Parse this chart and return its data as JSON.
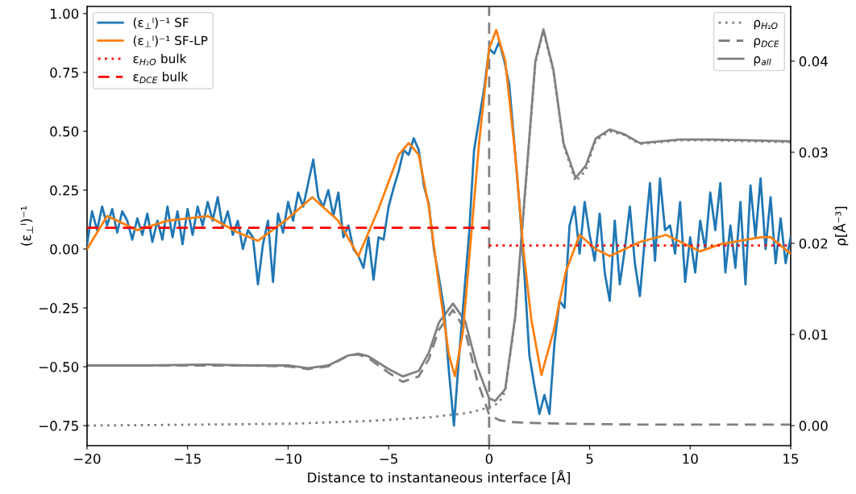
{
  "chart_data": {
    "type": "line",
    "xlabel": "Distance to instantaneous interface [Å]",
    "ylabel": "(ε$_{⊥}$ˡ)⁻¹",
    "y2label": "ρ[Å⁻³]",
    "xlim": [
      -20,
      15
    ],
    "xticks": [
      {
        "value": -20,
        "label": "−20"
      },
      {
        "value": -15,
        "label": "−15"
      },
      {
        "value": -10,
        "label": "−10"
      },
      {
        "value": -5,
        "label": "−5"
      },
      0,
      5,
      10,
      15
    ],
    "ylim": [
      -0.835,
      1.03
    ],
    "yticks": [
      {
        "value": -0.75,
        "label": "−0.75"
      },
      {
        "value": -0.5,
        "label": "−0.50"
      },
      {
        "value": -0.25,
        "label": "−0.25"
      },
      {
        "value": 0,
        "label": "0.00"
      },
      {
        "value": 0.25,
        "label": "0.25"
      },
      {
        "value": 0.5,
        "label": "0.50"
      },
      {
        "value": 0.75,
        "label": "0.75"
      },
      {
        "value": 1.0,
        "label": "1.00"
      }
    ],
    "y2lim": [
      -0.0022,
      0.046
    ],
    "y2ticks": [
      {
        "value": 0,
        "label": "0.00"
      },
      {
        "value": 0.01,
        "label": "0.01"
      },
      {
        "value": 0.02,
        "label": "0.02"
      },
      {
        "value": 0.03,
        "label": "0.03"
      },
      {
        "value": 0.04,
        "label": "0.04"
      }
    ],
    "grid": false,
    "legend": [
      "top left",
      "top right"
    ],
    "ref_lines": [
      {
        "axis": "x",
        "value": 0,
        "label": null,
        "color": "#808080",
        "line_style": "dashed"
      }
    ],
    "series": [
      {
        "name": "(ε$_{⊥}$ˡ)⁻¹ SF",
        "color": "#1f77b4",
        "line_style": "solid",
        "x": [
          -20,
          -19.75,
          -19.5,
          -19.25,
          -19,
          -18.75,
          -18.5,
          -18.25,
          -18,
          -17.75,
          -17.5,
          -17.25,
          -17,
          -16.75,
          -16.5,
          -16.25,
          -16,
          -15.75,
          -15.5,
          -15.25,
          -15,
          -14.75,
          -14.5,
          -14.25,
          -14,
          -13.75,
          -13.5,
          -13.25,
          -13,
          -12.75,
          -12.5,
          -12.25,
          -12,
          -11.75,
          -11.5,
          -11.25,
          -11,
          -10.75,
          -10.5,
          -10.25,
          -10,
          -9.75,
          -9.5,
          -9.25,
          -9,
          -8.75,
          -8.5,
          -8.25,
          -8,
          -7.75,
          -7.5,
          -7.25,
          -7,
          -6.75,
          -6.5,
          -6.25,
          -6,
          -5.75,
          -5.5,
          -5.25,
          -5,
          -4.75,
          -4.5,
          -4.25,
          -4,
          -3.75,
          -3.5,
          -3.25,
          -3,
          -2.75,
          -2.5,
          -2.25,
          -2,
          -1.75,
          -1.5,
          -1.25,
          -1,
          -0.75,
          -0.5,
          -0.25,
          0,
          0.25,
          0.5,
          0.75,
          1,
          1.25,
          1.5,
          1.75,
          2,
          2.25,
          2.5,
          2.75,
          3,
          3.25,
          3.5,
          3.75,
          4,
          4.25,
          4.5,
          4.75,
          5,
          5.25,
          5.5,
          5.75,
          6,
          6.25,
          6.5,
          6.75,
          7,
          7.25,
          7.5,
          7.75,
          8,
          8.25,
          8.5,
          8.75,
          9,
          9.25,
          9.5,
          9.75,
          10,
          10.25,
          10.5,
          10.75,
          11,
          11.25,
          11.5,
          11.75,
          12,
          12.25,
          12.5,
          12.75,
          13,
          13.25,
          13.5,
          13.75,
          14,
          14.25,
          14.5,
          14.75,
          15
        ],
        "values": [
          0.02,
          0.16,
          0.08,
          0.18,
          0.1,
          0.17,
          0.07,
          0.16,
          0.12,
          0.04,
          0.13,
          0.06,
          0.15,
          0.03,
          0.12,
          0.04,
          0.18,
          0.05,
          0.16,
          0.02,
          0.17,
          0.06,
          0.18,
          0.1,
          0.2,
          0.12,
          0.22,
          0.09,
          0.16,
          0.06,
          0.12,
          0.0,
          0.08,
          0.05,
          -0.15,
          0.02,
          0.12,
          -0.14,
          0.15,
          0.07,
          0.2,
          0.12,
          0.24,
          0.18,
          0.28,
          0.38,
          0.22,
          0.18,
          0.25,
          0.14,
          0.24,
          0.05,
          0.1,
          0.0,
          -0.03,
          -0.08,
          0.05,
          -0.13,
          0.05,
          0.04,
          0.18,
          0.26,
          0.33,
          0.42,
          0.4,
          0.47,
          0.42,
          0.27,
          0.19,
          0.0,
          -0.12,
          -0.25,
          -0.52,
          -0.75,
          -0.46,
          -0.2,
          0.06,
          0.42,
          0.55,
          0.68,
          0.85,
          0.83,
          0.88,
          0.8,
          0.7,
          0.45,
          0.2,
          -0.1,
          -0.45,
          -0.58,
          -0.7,
          -0.62,
          -0.7,
          -0.4,
          -0.22,
          -0.25,
          0.1,
          0.18,
          -0.02,
          0.2,
          0.06,
          -0.05,
          0.15,
          -0.1,
          -0.22,
          0.12,
          -0.15,
          0.0,
          0.18,
          -0.06,
          -0.2,
          0.05,
          0.28,
          -0.05,
          0.3,
          0.08,
          0.1,
          -0.02,
          0.2,
          -0.14,
          0.05,
          -0.1,
          0.12,
          0.0,
          0.24,
          0.08,
          0.28,
          -0.1,
          0.1,
          -0.08,
          0.2,
          -0.15,
          0.27,
          0.05,
          0.3,
          0.0,
          0.22,
          -0.06,
          0.13,
          -0.06,
          0.05
        ]
      },
      {
        "name": "(ε$_{⊥}$ˡ)⁻¹ SF-LP",
        "color": "#ff7f0e",
        "line_style": "solid",
        "x": [
          -20,
          -19,
          -17.5,
          -16,
          -14,
          -12.5,
          -11.5,
          -10,
          -8.8,
          -7.5,
          -6.5,
          -5.5,
          -4.5,
          -4,
          -3.5,
          -3,
          -2.5,
          -2,
          -1.7,
          -1.3,
          -1,
          -0.5,
          0,
          0.35,
          0.8,
          1.3,
          1.7,
          2.1,
          2.6,
          3.2,
          3.8,
          4.5,
          5.3,
          6,
          7.5,
          8.8,
          10.5,
          11.5,
          13.5,
          14,
          15
        ],
        "values": [
          0.0,
          0.14,
          0.08,
          0.12,
          0.14,
          0.07,
          0.035,
          0.13,
          0.22,
          0.12,
          -0.03,
          0.17,
          0.4,
          0.45,
          0.4,
          0.18,
          -0.15,
          -0.45,
          -0.54,
          -0.35,
          -0.05,
          0.45,
          0.85,
          0.93,
          0.8,
          0.4,
          0.0,
          -0.3,
          -0.535,
          -0.35,
          -0.1,
          0.06,
          0.0,
          -0.03,
          0.03,
          0.06,
          -0.01,
          0.02,
          0.05,
          0.05,
          -0.02
        ]
      },
      {
        "name": "ε$_{H₂O}$ bulk",
        "color": "#ff0000",
        "line_style": "dotted",
        "x": [
          0,
          15
        ],
        "values": [
          0.015,
          0.015
        ]
      },
      {
        "name": "ε$_{DCE}$ bulk",
        "color": "#ff0000",
        "line_style": "dashed",
        "x": [
          -20,
          0
        ],
        "values": [
          0.09,
          0.09
        ]
      },
      {
        "name": "ρ$_{H₂O}$",
        "color": "#808080",
        "line_style": "dotted",
        "axis": "y2",
        "x": [
          -20,
          -15,
          -10,
          -6,
          -3,
          -1,
          0,
          0.5,
          0.8,
          1.3,
          1.8,
          2.3,
          2.7,
          3.2,
          3.7,
          4.3,
          4.8,
          5.3,
          6,
          6.7,
          7.5,
          8.5,
          9.5,
          11,
          13,
          15
        ],
        "values": [
          0.0,
          0.0001,
          0.0002,
          0.0005,
          0.0009,
          0.0014,
          0.002,
          0.0025,
          0.0038,
          0.0118,
          0.0258,
          0.0398,
          0.0433,
          0.0388,
          0.0308,
          0.0268,
          0.028,
          0.0313,
          0.0323,
          0.0319,
          0.0309,
          0.0311,
          0.0313,
          0.0313,
          0.0312,
          0.0311
        ]
      },
      {
        "name": "ρ$_{DCE}$",
        "color": "#808080",
        "line_style": "dashed",
        "axis": "y2",
        "x": [
          -20,
          -17,
          -14,
          -12,
          -10,
          -9,
          -8,
          -7,
          -6.5,
          -6,
          -5,
          -4.3,
          -3.5,
          -3,
          -2.5,
          -1.8,
          -1.2,
          -0.6,
          0,
          0.5,
          1,
          2,
          4,
          8,
          15
        ],
        "values": [
          0.0066,
          0.0066,
          0.0066,
          0.0066,
          0.0065,
          0.0062,
          0.0065,
          0.0077,
          0.0078,
          0.0074,
          0.0058,
          0.0048,
          0.0054,
          0.0073,
          0.0105,
          0.0127,
          0.0105,
          0.005,
          0.0012,
          0.0006,
          0.0004,
          0.0003,
          0.0002,
          0.0001,
          0.0001
        ]
      },
      {
        "name": "ρ$_{all}$",
        "color": "#808080",
        "line_style": "solid",
        "axis": "y2",
        "x": [
          -20,
          -17,
          -14,
          -12,
          -10,
          -9,
          -8,
          -7,
          -6.5,
          -6,
          -5,
          -4.3,
          -3.5,
          -3,
          -2.5,
          -1.8,
          -1.2,
          -0.6,
          0,
          0.3,
          0.8,
          1.3,
          1.8,
          2.3,
          2.7,
          3.2,
          3.7,
          4.3,
          4.8,
          5.3,
          6,
          6.7,
          7.5,
          8.5,
          9.5,
          11,
          13,
          15
        ],
        "values": [
          0.0066,
          0.0066,
          0.0067,
          0.0066,
          0.0066,
          0.0063,
          0.0066,
          0.0077,
          0.0079,
          0.0076,
          0.0062,
          0.0054,
          0.006,
          0.008,
          0.0113,
          0.0134,
          0.0115,
          0.0065,
          0.003,
          0.0027,
          0.004,
          0.012,
          0.026,
          0.04,
          0.0435,
          0.039,
          0.031,
          0.0272,
          0.0285,
          0.0315,
          0.0325,
          0.032,
          0.031,
          0.0312,
          0.0314,
          0.0314,
          0.0313,
          0.0312
        ]
      }
    ]
  }
}
